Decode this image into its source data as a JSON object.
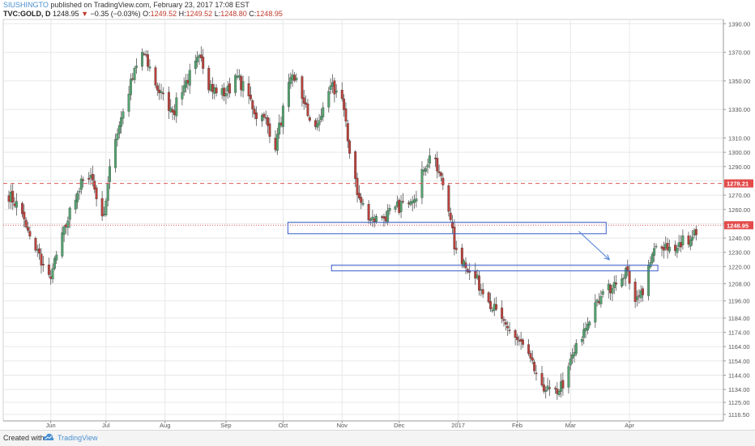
{
  "header": {
    "author": "SIUSHINGTO",
    "published_text": "published on TradingView.com, February 23, 2017 17:08 EST",
    "symbol": "TVC:GOLD, D",
    "last": "1248.95",
    "change_arrow": "▼",
    "change": "−0.35 (−0.03%)",
    "open_label": "O:",
    "open": "1249.52",
    "high_label": "H:",
    "high": "1249.52",
    "low_label": "L:",
    "low": "1248.80",
    "close_label": "C:",
    "close": "1248.95"
  },
  "footer": {
    "created_with": "Created with",
    "brand": "TradingView",
    "logo_icon": "tradingview-cloud-icon"
  },
  "colors": {
    "up": "#53a36f",
    "down": "#b8413b",
    "grid": "#e8e8e8",
    "resistance_line": "#e05a5a",
    "zone_border": "#3b5dc9",
    "arrow": "#4a7fd6",
    "price_tag": "#e34b4b"
  },
  "chart_data": {
    "type": "candlestick",
    "symbol": "TVC:GOLD",
    "timeframe": "D",
    "ylim": [
      1112,
      1393
    ],
    "y_ticks": [
      "1390.00",
      "1370.00",
      "1350.00",
      "1330.00",
      "1310.00",
      "1300.00",
      "1290.00",
      "1280.00",
      "1270.00",
      "1260.00",
      "1250.00",
      "1240.00",
      "1230.00",
      "1220.00",
      "1208.00",
      "1196.00",
      "1184.00",
      "1174.00",
      "1164.00",
      "1154.00",
      "1144.00",
      "1134.00",
      "1125.00",
      "1116.50"
    ],
    "x_ticks": [
      "Jun",
      "Jul",
      "Aug",
      "Sep",
      "Oct",
      "Nov",
      "Dec",
      "2017",
      "Feb",
      "Mar",
      "Apr"
    ],
    "price_tags": [
      {
        "label": "1278.21",
        "value": 1278.21
      },
      {
        "label": "1248.95",
        "value": 1248.95
      }
    ],
    "horizontal_lines": [
      {
        "value": 1278.21,
        "style": "dashed"
      },
      {
        "value": 1248.95,
        "style": "dotted"
      }
    ],
    "zones": [
      {
        "from": "Oct",
        "to": "Mar",
        "top": 1251,
        "bottom": 1243
      },
      {
        "from": "Nov",
        "to": "Apr",
        "top": 1221,
        "bottom": 1217
      }
    ],
    "waypoints": [
      [
        0,
        1270
      ],
      [
        5,
        1262
      ],
      [
        11,
        1240
      ],
      [
        17,
        1225
      ],
      [
        20,
        1208
      ],
      [
        24,
        1222
      ],
      [
        28,
        1240
      ],
      [
        32,
        1258
      ],
      [
        36,
        1272
      ],
      [
        40,
        1283
      ],
      [
        43,
        1286
      ],
      [
        47,
        1262
      ],
      [
        50,
        1258
      ],
      [
        55,
        1305
      ],
      [
        60,
        1330
      ],
      [
        65,
        1352
      ],
      [
        70,
        1370
      ],
      [
        74,
        1358
      ],
      [
        78,
        1345
      ],
      [
        82,
        1335
      ],
      [
        87,
        1330
      ],
      [
        91,
        1345
      ],
      [
        97,
        1358
      ],
      [
        101,
        1368
      ],
      [
        105,
        1348
      ],
      [
        110,
        1340
      ],
      [
        115,
        1343
      ],
      [
        120,
        1352
      ],
      [
        125,
        1342
      ],
      [
        130,
        1326
      ],
      [
        135,
        1322
      ],
      [
        140,
        1305
      ],
      [
        145,
        1335
      ],
      [
        149,
        1355
      ],
      [
        153,
        1345
      ],
      [
        157,
        1325
      ],
      [
        162,
        1318
      ],
      [
        166,
        1338
      ],
      [
        170,
        1345
      ],
      [
        175,
        1337
      ],
      [
        178,
        1308
      ],
      [
        181,
        1290
      ],
      [
        183,
        1270
      ],
      [
        186,
        1262
      ],
      [
        190,
        1255
      ],
      [
        195,
        1252
      ],
      [
        200,
        1258
      ],
      [
        205,
        1262
      ],
      [
        210,
        1268
      ],
      [
        215,
        1272
      ],
      [
        218,
        1290
      ],
      [
        222,
        1298
      ],
      [
        226,
        1284
      ],
      [
        230,
        1272
      ],
      [
        232,
        1250
      ],
      [
        235,
        1228
      ],
      [
        240,
        1222
      ],
      [
        245,
        1212
      ],
      [
        250,
        1200
      ],
      [
        255,
        1190
      ],
      [
        260,
        1178
      ],
      [
        265,
        1172
      ],
      [
        270,
        1164
      ],
      [
        275,
        1150
      ],
      [
        279,
        1140
      ],
      [
        283,
        1133
      ],
      [
        287,
        1132
      ],
      [
        292,
        1140
      ],
      [
        296,
        1158
      ],
      [
        300,
        1168
      ],
      [
        305,
        1184
      ],
      [
        310,
        1196
      ],
      [
        315,
        1204
      ],
      [
        320,
        1214
      ],
      [
        325,
        1215
      ],
      [
        330,
        1196
      ],
      [
        334,
        1206
      ],
      [
        338,
        1228
      ],
      [
        342,
        1237
      ],
      [
        346,
        1234
      ],
      [
        350,
        1230
      ],
      [
        354,
        1238
      ],
      [
        358,
        1236
      ],
      [
        362,
        1249
      ]
    ],
    "annotation_arrow": {
      "from_label": "Feb-end",
      "to_label": "Mar-end",
      "from_value": 1243,
      "to_value": 1222
    }
  }
}
